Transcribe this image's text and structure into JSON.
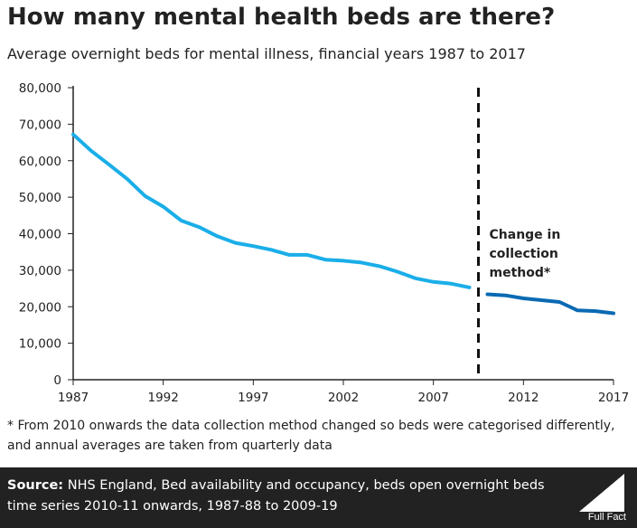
{
  "title": "How many mental health beds are there?",
  "subtitle": "Average overnight beds for mental illness, financial years 1987 to 2017",
  "annotation": [
    "Change in",
    "collection",
    "method*"
  ],
  "footnote": "* From 2010 onwards the data collection method changed so beds were categorised differently, and annual averages are taken from quarterly data",
  "source_label": "Source:",
  "source_text": "NHS England, Bed availability and occupancy, beds open overnight beds time series 2010-11 onwards, 1987-88 to 2009-19",
  "logo_text": "Full Fact",
  "colors": {
    "series_old": "#1aaee8",
    "series_new": "#0a6ab3",
    "footer_bg": "#222222"
  },
  "chart_data": {
    "type": "line",
    "xlim": [
      1987,
      2017
    ],
    "ylim": [
      0,
      80000
    ],
    "x_ticks": [
      1987,
      1992,
      1997,
      2002,
      2007,
      2012,
      2017
    ],
    "y_ticks": [
      0,
      10000,
      20000,
      30000,
      40000,
      50000,
      60000,
      70000,
      80000
    ],
    "y_tick_labels": [
      "0",
      "10,000",
      "20,000",
      "30,000",
      "40,000",
      "50,000",
      "60,000",
      "70,000",
      "80,000"
    ],
    "divider_x": 2009.5,
    "grid": false,
    "series": [
      {
        "x": [
          1987,
          1988,
          1989,
          1990,
          1991,
          1992,
          1993,
          1994,
          1995,
          1996,
          1997,
          1998,
          1999,
          2000,
          2001,
          2002,
          2003,
          2004,
          2005,
          2006,
          2007,
          2008,
          2009
        ],
        "values": [
          67200,
          62700,
          58900,
          55000,
          50300,
          47400,
          43600,
          41800,
          39300,
          37500,
          36600,
          35600,
          34200,
          34200,
          32900,
          32600,
          32100,
          31100,
          29600,
          27800,
          26800,
          26300,
          25300
        ]
      },
      {
        "x": [
          2010,
          2011,
          2012,
          2013,
          2014,
          2015,
          2016,
          2017
        ],
        "values": [
          23400,
          23100,
          22300,
          21800,
          21300,
          19000,
          18800,
          18200
        ]
      }
    ]
  }
}
